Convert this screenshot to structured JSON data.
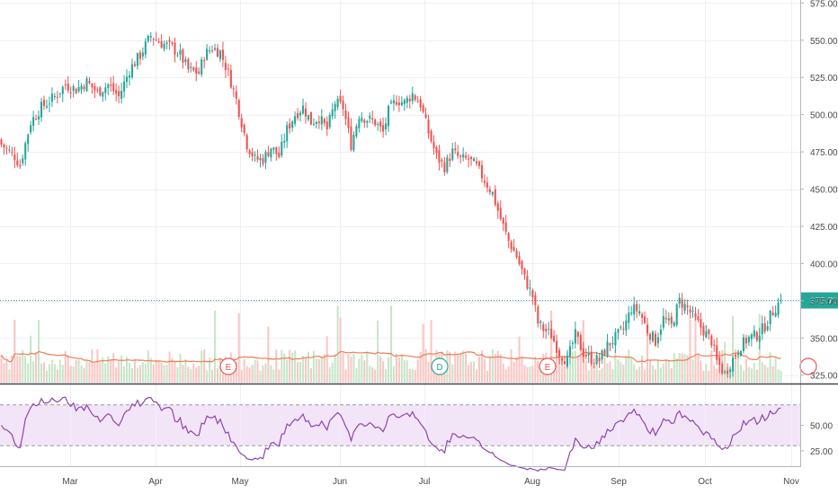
{
  "chart_data": {
    "type": "candlestick",
    "price_axis": {
      "ticks": [
        "575.00",
        "550.00",
        "525.00",
        "500.00",
        "475.00",
        "450.00",
        "425.00",
        "400.00",
        "375.00",
        "350.00",
        "325.00"
      ],
      "range": [
        320,
        577
      ]
    },
    "last_price_label": "375.70",
    "rsi_axis": {
      "ticks": [
        "50.00",
        "25.00"
      ],
      "range": [
        10,
        90
      ],
      "band": [
        30,
        70
      ]
    },
    "x_ticks": [
      "Mar",
      "Apr",
      "May",
      "Jun",
      "Jul",
      "Aug",
      "Sep",
      "Oct",
      "Nov"
    ],
    "event_markers": [
      "E",
      "D",
      "E"
    ],
    "colors": {
      "up": "#26a69a",
      "down": "#ef5350",
      "up_volume": "#c8e6c9",
      "down_volume": "#f8c7c4",
      "volume_ma": "#ef7d56",
      "rsi_line": "#8e44ad",
      "rsi_band": "#f3e5f8",
      "last_price": "#26a69a",
      "grid": "#eef0f3"
    },
    "candles": [],
    "volume": [],
    "volume_ma": [],
    "rsi": []
  }
}
